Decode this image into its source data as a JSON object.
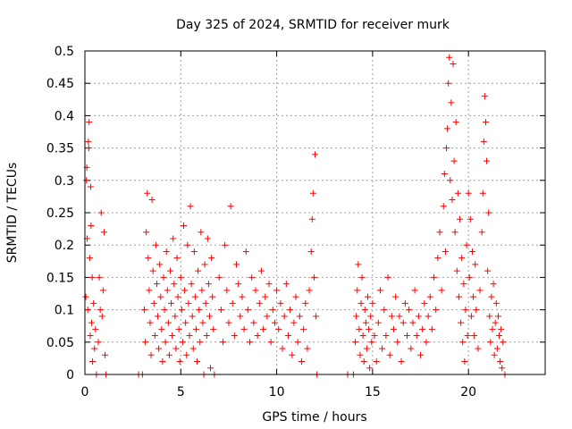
{
  "chart_data": {
    "type": "scatter",
    "title": "Day 325 of 2024, SRMTID for receiver murk",
    "xlabel": "GPS time / hours",
    "ylabel": "SRMTID / TECUs",
    "xlim": [
      0,
      24
    ],
    "ylim": [
      0,
      0.5
    ],
    "grid": true,
    "marker": "+",
    "colors": {
      "points": "#ff0000",
      "grid": "#a0a0a0",
      "axis": "#000000"
    },
    "xticks": [
      {
        "value": 0,
        "label": "0"
      },
      {
        "value": 5,
        "label": "5"
      },
      {
        "value": 10,
        "label": "10"
      },
      {
        "value": 15,
        "label": "15"
      },
      {
        "value": 20,
        "label": "20"
      }
    ],
    "yticks": [
      {
        "value": 0,
        "label": "0"
      },
      {
        "value": 0.05,
        "label": "0.05"
      },
      {
        "value": 0.1,
        "label": "0.1"
      },
      {
        "value": 0.15,
        "label": "0.15"
      },
      {
        "value": 0.2,
        "label": "0.2"
      },
      {
        "value": 0.25,
        "label": "0.25"
      },
      {
        "value": 0.3,
        "label": "0.3"
      },
      {
        "value": 0.35,
        "label": "0.35"
      },
      {
        "value": 0.4,
        "label": "0.4"
      },
      {
        "value": 0.45,
        "label": "0.45"
      },
      {
        "value": 0.5,
        "label": "0.5"
      }
    ],
    "series": [
      {
        "name": "SRMTID",
        "points": [
          [
            0.05,
            0.12
          ],
          [
            0.08,
            0.3
          ],
          [
            0.1,
            0.32
          ],
          [
            0.12,
            0.21
          ],
          [
            0.15,
            0.1
          ],
          [
            0.18,
            0.36
          ],
          [
            0.2,
            0.35
          ],
          [
            0.22,
            0.39
          ],
          [
            0.25,
            0.18
          ],
          [
            0.28,
            0.06
          ],
          [
            0.3,
            0.29
          ],
          [
            0.32,
            0.23
          ],
          [
            0.35,
            0.08
          ],
          [
            0.38,
            0.15
          ],
          [
            0.4,
            0.02
          ],
          [
            0.45,
            0.11
          ],
          [
            0.5,
            0.04
          ],
          [
            0.55,
            0.07
          ],
          [
            0.6,
            0.0
          ],
          [
            0.7,
            0.05
          ],
          [
            0.75,
            0.15
          ],
          [
            0.8,
            0.1
          ],
          [
            0.85,
            0.25
          ],
          [
            0.9,
            0.09
          ],
          [
            0.95,
            0.13
          ],
          [
            1.0,
            0.22
          ],
          [
            1.05,
            0.03
          ],
          [
            1.1,
            0.0
          ],
          [
            2.8,
            0.0
          ],
          [
            3.0,
            0.0
          ],
          [
            3.1,
            0.1
          ],
          [
            3.15,
            0.05
          ],
          [
            3.2,
            0.22
          ],
          [
            3.25,
            0.28
          ],
          [
            3.3,
            0.18
          ],
          [
            3.35,
            0.13
          ],
          [
            3.4,
            0.08
          ],
          [
            3.45,
            0.03
          ],
          [
            3.5,
            0.27
          ],
          [
            3.55,
            0.16
          ],
          [
            3.6,
            0.11
          ],
          [
            3.65,
            0.06
          ],
          [
            3.7,
            0.2
          ],
          [
            3.75,
            0.14
          ],
          [
            3.8,
            0.09
          ],
          [
            3.85,
            0.04
          ],
          [
            3.9,
            0.17
          ],
          [
            3.95,
            0.12
          ],
          [
            4.0,
            0.07
          ],
          [
            4.05,
            0.02
          ],
          [
            4.1,
            0.15
          ],
          [
            4.15,
            0.1
          ],
          [
            4.2,
            0.05
          ],
          [
            4.25,
            0.19
          ],
          [
            4.3,
            0.13
          ],
          [
            4.35,
            0.08
          ],
          [
            4.4,
            0.03
          ],
          [
            4.45,
            0.16
          ],
          [
            4.5,
            0.11
          ],
          [
            4.55,
            0.06
          ],
          [
            4.6,
            0.21
          ],
          [
            4.65,
            0.14
          ],
          [
            4.7,
            0.09
          ],
          [
            4.75,
            0.04
          ],
          [
            4.8,
            0.18
          ],
          [
            4.85,
            0.12
          ],
          [
            4.9,
            0.07
          ],
          [
            4.95,
            0.02
          ],
          [
            5.0,
            0.15
          ],
          [
            5.05,
            0.1
          ],
          [
            5.1,
            0.05
          ],
          [
            5.15,
            0.23
          ],
          [
            5.2,
            0.13
          ],
          [
            5.25,
            0.08
          ],
          [
            5.3,
            0.03
          ],
          [
            5.35,
            0.2
          ],
          [
            5.4,
            0.11
          ],
          [
            5.45,
            0.06
          ],
          [
            5.5,
            0.26
          ],
          [
            5.55,
            0.14
          ],
          [
            5.6,
            0.09
          ],
          [
            5.65,
            0.04
          ],
          [
            5.7,
            0.19
          ],
          [
            5.75,
            0.12
          ],
          [
            5.8,
            0.07
          ],
          [
            5.85,
            0.02
          ],
          [
            5.9,
            0.16
          ],
          [
            5.95,
            0.1
          ],
          [
            6.0,
            0.05
          ],
          [
            6.05,
            0.22
          ],
          [
            6.1,
            0.13
          ],
          [
            6.15,
            0.08
          ],
          [
            6.2,
            0.0
          ],
          [
            6.25,
            0.17
          ],
          [
            6.3,
            0.11
          ],
          [
            6.35,
            0.06
          ],
          [
            6.4,
            0.21
          ],
          [
            6.45,
            0.14
          ],
          [
            6.5,
            0.09
          ],
          [
            6.55,
            0.01
          ],
          [
            6.6,
            0.18
          ],
          [
            6.65,
            0.12
          ],
          [
            6.7,
            0.07
          ],
          [
            6.75,
            0.0
          ],
          [
            7.0,
            0.15
          ],
          [
            7.1,
            0.1
          ],
          [
            7.2,
            0.05
          ],
          [
            7.3,
            0.2
          ],
          [
            7.4,
            0.13
          ],
          [
            7.5,
            0.08
          ],
          [
            7.6,
            0.26
          ],
          [
            7.7,
            0.11
          ],
          [
            7.8,
            0.06
          ],
          [
            7.9,
            0.17
          ],
          [
            8.0,
            0.14
          ],
          [
            8.1,
            0.09
          ],
          [
            8.2,
            0.12
          ],
          [
            8.3,
            0.07
          ],
          [
            8.4,
            0.19
          ],
          [
            8.5,
            0.1
          ],
          [
            8.6,
            0.05
          ],
          [
            8.7,
            0.15
          ],
          [
            8.8,
            0.08
          ],
          [
            8.9,
            0.13
          ],
          [
            9.0,
            0.06
          ],
          [
            9.1,
            0.11
          ],
          [
            9.2,
            0.16
          ],
          [
            9.3,
            0.07
          ],
          [
            9.4,
            0.12
          ],
          [
            9.5,
            0.09
          ],
          [
            9.6,
            0.14
          ],
          [
            9.7,
            0.05
          ],
          [
            9.8,
            0.1
          ],
          [
            9.9,
            0.08
          ],
          [
            10.0,
            0.13
          ],
          [
            10.1,
            0.07
          ],
          [
            10.2,
            0.11
          ],
          [
            10.3,
            0.04
          ],
          [
            10.4,
            0.09
          ],
          [
            10.5,
            0.14
          ],
          [
            10.6,
            0.06
          ],
          [
            10.7,
            0.1
          ],
          [
            10.8,
            0.03
          ],
          [
            10.9,
            0.08
          ],
          [
            11.0,
            0.12
          ],
          [
            11.1,
            0.05
          ],
          [
            11.2,
            0.09
          ],
          [
            11.3,
            0.02
          ],
          [
            11.4,
            0.07
          ],
          [
            11.5,
            0.11
          ],
          [
            11.6,
            0.04
          ],
          [
            11.7,
            0.13
          ],
          [
            11.8,
            0.19
          ],
          [
            11.85,
            0.24
          ],
          [
            11.9,
            0.28
          ],
          [
            11.95,
            0.15
          ],
          [
            12.0,
            0.34
          ],
          [
            12.05,
            0.09
          ],
          [
            12.1,
            0.0
          ],
          [
            13.7,
            0.0
          ],
          [
            14.0,
            0.0
          ],
          [
            14.1,
            0.05
          ],
          [
            14.15,
            0.09
          ],
          [
            14.2,
            0.13
          ],
          [
            14.25,
            0.17
          ],
          [
            14.3,
            0.07
          ],
          [
            14.35,
            0.03
          ],
          [
            14.4,
            0.11
          ],
          [
            14.45,
            0.15
          ],
          [
            14.5,
            0.06
          ],
          [
            14.55,
            0.02
          ],
          [
            14.6,
            0.1
          ],
          [
            14.65,
            0.08
          ],
          [
            14.7,
            0.04
          ],
          [
            14.75,
            0.12
          ],
          [
            14.8,
            0.07
          ],
          [
            14.85,
            0.01
          ],
          [
            14.9,
            0.09
          ],
          [
            14.95,
            0.05
          ],
          [
            15.0,
            0.11
          ],
          [
            15.1,
            0.06
          ],
          [
            15.2,
            0.02
          ],
          [
            15.3,
            0.08
          ],
          [
            15.4,
            0.13
          ],
          [
            15.5,
            0.04
          ],
          [
            15.6,
            0.1
          ],
          [
            15.7,
            0.06
          ],
          [
            15.8,
            0.15
          ],
          [
            15.9,
            0.03
          ],
          [
            16.0,
            0.09
          ],
          [
            16.1,
            0.07
          ],
          [
            16.2,
            0.12
          ],
          [
            16.3,
            0.05
          ],
          [
            16.4,
            0.09
          ],
          [
            16.5,
            0.02
          ],
          [
            16.6,
            0.08
          ],
          [
            16.7,
            0.11
          ],
          [
            16.8,
            0.06
          ],
          [
            16.9,
            0.1
          ],
          [
            17.0,
            0.04
          ],
          [
            17.1,
            0.08
          ],
          [
            17.2,
            0.13
          ],
          [
            17.3,
            0.06
          ],
          [
            17.4,
            0.09
          ],
          [
            17.5,
            0.03
          ],
          [
            17.6,
            0.07
          ],
          [
            17.7,
            0.11
          ],
          [
            17.8,
            0.05
          ],
          [
            17.9,
            0.09
          ],
          [
            18.0,
            0.12
          ],
          [
            18.1,
            0.07
          ],
          [
            18.2,
            0.15
          ],
          [
            18.3,
            0.1
          ],
          [
            18.4,
            0.18
          ],
          [
            18.5,
            0.22
          ],
          [
            18.6,
            0.13
          ],
          [
            18.7,
            0.26
          ],
          [
            18.75,
            0.31
          ],
          [
            18.8,
            0.19
          ],
          [
            18.85,
            0.35
          ],
          [
            18.9,
            0.38
          ],
          [
            18.95,
            0.45
          ],
          [
            19.0,
            0.49
          ],
          [
            19.05,
            0.3
          ],
          [
            19.1,
            0.42
          ],
          [
            19.15,
            0.27
          ],
          [
            19.2,
            0.48
          ],
          [
            19.25,
            0.33
          ],
          [
            19.3,
            0.22
          ],
          [
            19.35,
            0.39
          ],
          [
            19.4,
            0.16
          ],
          [
            19.45,
            0.28
          ],
          [
            19.5,
            0.12
          ],
          [
            19.55,
            0.24
          ],
          [
            19.6,
            0.08
          ],
          [
            19.65,
            0.18
          ],
          [
            19.7,
            0.05
          ],
          [
            19.75,
            0.14
          ],
          [
            19.8,
            0.02
          ],
          [
            19.85,
            0.1
          ],
          [
            19.9,
            0.2
          ],
          [
            19.95,
            0.06
          ],
          [
            20.0,
            0.28
          ],
          [
            20.05,
            0.15
          ],
          [
            20.1,
            0.24
          ],
          [
            20.15,
            0.09
          ],
          [
            20.2,
            0.19
          ],
          [
            20.25,
            0.12
          ],
          [
            20.3,
            0.06
          ],
          [
            20.35,
            0.17
          ],
          [
            20.4,
            0.1
          ],
          [
            20.5,
            0.04
          ],
          [
            20.6,
            0.13
          ],
          [
            20.7,
            0.22
          ],
          [
            20.75,
            0.28
          ],
          [
            20.8,
            0.36
          ],
          [
            20.85,
            0.43
          ],
          [
            20.9,
            0.39
          ],
          [
            20.95,
            0.33
          ],
          [
            21.0,
            0.16
          ],
          [
            21.05,
            0.25
          ],
          [
            21.1,
            0.09
          ],
          [
            21.15,
            0.05
          ],
          [
            21.2,
            0.12
          ],
          [
            21.25,
            0.07
          ],
          [
            21.3,
            0.14
          ],
          [
            21.35,
            0.03
          ],
          [
            21.4,
            0.08
          ],
          [
            21.45,
            0.11
          ],
          [
            21.5,
            0.04
          ],
          [
            21.55,
            0.09
          ],
          [
            21.6,
            0.06
          ],
          [
            21.65,
            0.02
          ],
          [
            21.7,
            0.07
          ],
          [
            21.75,
            0.01
          ],
          [
            21.8,
            0.05
          ],
          [
            21.9,
            0.0
          ]
        ]
      }
    ]
  }
}
